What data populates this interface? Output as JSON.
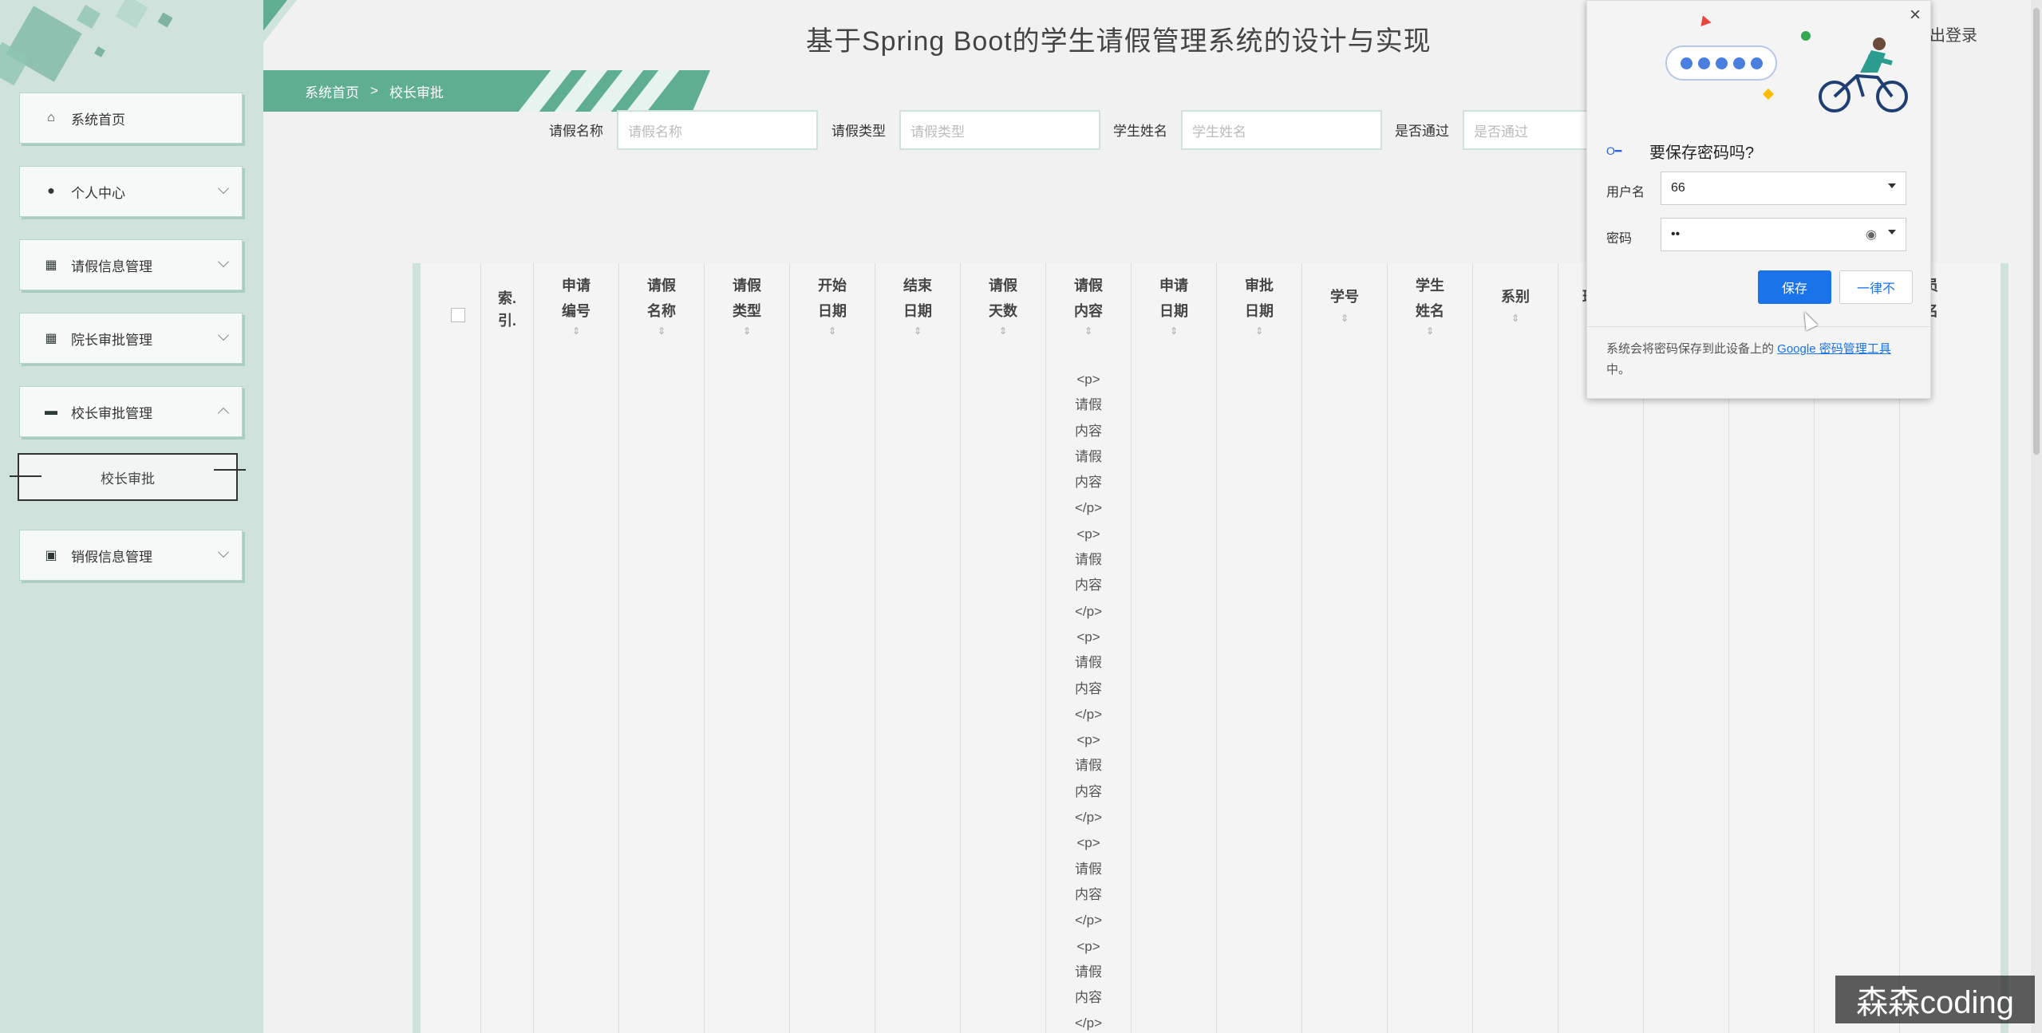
{
  "app": {
    "title": "基于Spring Boot的学生请假管理系统的设计与实现",
    "logout": "出登录"
  },
  "sidebar": {
    "items": [
      {
        "label": "系统首页",
        "icon": "home-icon"
      },
      {
        "label": "个人中心",
        "icon": "user-icon"
      },
      {
        "label": "请假信息管理",
        "icon": "grid-icon"
      },
      {
        "label": "院长审批管理",
        "icon": "grid-icon"
      },
      {
        "label": "校长审批管理",
        "icon": "monitor-icon"
      },
      {
        "label": "销假信息管理",
        "icon": "briefcase-icon"
      }
    ],
    "sub_item": "校长审批"
  },
  "breadcrumb": {
    "home": "系统首页",
    "sep": ">",
    "current": "校长审批"
  },
  "search": {
    "fields": [
      {
        "label": "请假名称",
        "placeholder": "请假名称"
      },
      {
        "label": "请假类型",
        "placeholder": "请假类型"
      },
      {
        "label": "学生姓名",
        "placeholder": "学生姓名"
      },
      {
        "label": "是否通过",
        "placeholder": "是否通过"
      }
    ]
  },
  "table": {
    "columns": [
      {
        "line1": "索",
        "line2": "引"
      },
      {
        "line1": "申请",
        "line2": "编号"
      },
      {
        "line1": "请假",
        "line2": "名称"
      },
      {
        "line1": "请假",
        "line2": "类型"
      },
      {
        "line1": "开始",
        "line2": "日期"
      },
      {
        "line1": "结束",
        "line2": "日期"
      },
      {
        "line1": "请假",
        "line2": "天数"
      },
      {
        "line1": "请假",
        "line2": "内容"
      },
      {
        "line1": "申请",
        "line2": "日期"
      },
      {
        "line1": "审批",
        "line2": "日期"
      },
      {
        "line1": "学号",
        "line2": ""
      },
      {
        "line1": "学生",
        "line2": "姓名"
      },
      {
        "line1": "系别",
        "line2": ""
      },
      {
        "line1": "班",
        "line2": ""
      },
      {
        "line1": "",
        "line2": ""
      },
      {
        "line1": "",
        "line2": ""
      },
      {
        "line1": "",
        "line2": ""
      },
      {
        "line1": "员",
        "line2": "名"
      }
    ],
    "content_lines": [
      "<p>",
      "请假",
      "内容",
      "请假",
      "内容",
      "</p>",
      "<p>",
      "请假",
      "内容",
      "</p>",
      "<p>",
      "请假",
      "内容",
      "</p>",
      "<p>",
      "请假",
      "内容",
      "</p>",
      "<p>",
      "请假",
      "内容",
      "</p>",
      "<p>",
      "请假",
      "内容",
      "</p>"
    ]
  },
  "password_popup": {
    "question": "要保存密码吗?",
    "username_label": "用户名",
    "username_value": "66",
    "password_label": "密码",
    "password_value": "••",
    "save_button": "保存",
    "never_button": "一律不",
    "footer_text": "系统会将密码保存到此设备上的 ",
    "footer_link": "Google 密码管理工具",
    "footer_end": "中。"
  },
  "watermark": "森森coding"
}
